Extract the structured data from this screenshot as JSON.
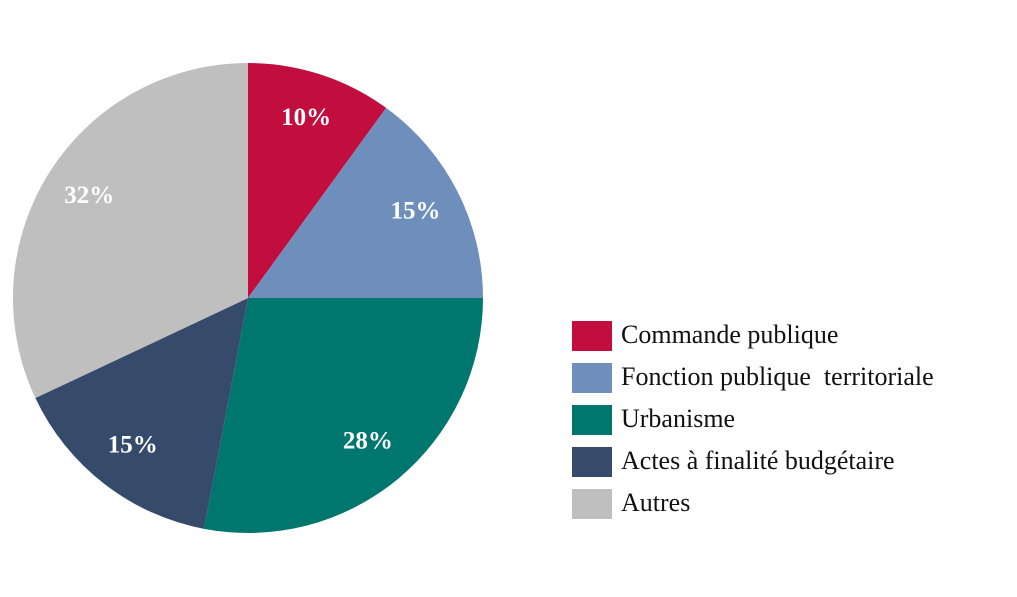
{
  "chart_data": {
    "type": "pie",
    "categories": [
      "Commande publique",
      "Fonction publique  territoriale",
      "Urbanisme",
      "Actes à finalité budgétaire",
      "Autres"
    ],
    "values": [
      10,
      15,
      28,
      15,
      32
    ],
    "value_labels": [
      "10%",
      "15%",
      "28%",
      "15%",
      "32%"
    ],
    "colors": [
      "#c20d3f",
      "#6e8fbb",
      "#00776e",
      "#364a6b",
      "#bfbfbf"
    ],
    "legend": "right"
  }
}
